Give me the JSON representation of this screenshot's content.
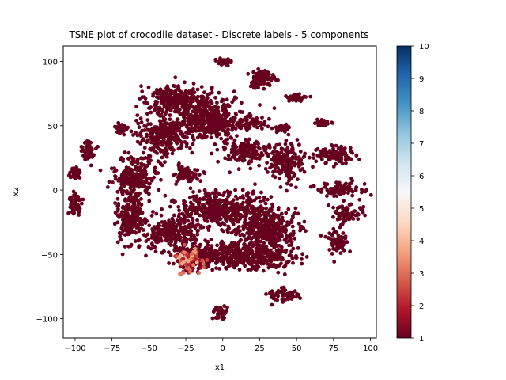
{
  "chart_data": {
    "type": "scatter",
    "title": "TSNE plot of crocodile dataset - Discrete labels - 5 components",
    "xlabel": "x1",
    "ylabel": "x2",
    "xlim": [
      -108,
      104
    ],
    "ylim": [
      -115,
      112
    ],
    "xticks": [
      -100,
      -75,
      -50,
      -25,
      0,
      25,
      50,
      75,
      100
    ],
    "xtick_labels": [
      "−100",
      "−75",
      "−50",
      "−25",
      "0",
      "25",
      "50",
      "75",
      "100"
    ],
    "yticks": [
      -100,
      -50,
      0,
      50,
      100
    ],
    "ytick_labels": [
      "−100",
      "−50",
      "0",
      "50",
      "100"
    ],
    "grid": false,
    "colormap": "RdBu",
    "colorbar": {
      "range": [
        1,
        10
      ],
      "ticks": [
        1,
        2,
        3,
        4,
        5,
        6,
        7,
        8,
        9,
        10
      ],
      "tick_labels": [
        "1",
        "2",
        "3",
        "4",
        "5",
        "6",
        "7",
        "8",
        "9",
        "10"
      ]
    },
    "clusters": [
      {
        "center": [
          0,
          100
        ],
        "spread": [
          5,
          2
        ],
        "label": 1
      },
      {
        "center": [
          27,
          87
        ],
        "spread": [
          7,
          6
        ],
        "label": 1
      },
      {
        "center": [
          22,
          82
        ],
        "spread": [
          2,
          3
        ],
        "label": 1
      },
      {
        "center": [
          50,
          72
        ],
        "spread": [
          6,
          3
        ],
        "label": 1
      },
      {
        "center": [
          -30,
          70
        ],
        "spread": [
          18,
          10
        ],
        "label": 1
      },
      {
        "center": [
          68,
          52
        ],
        "spread": [
          5,
          2
        ],
        "label": 1
      },
      {
        "center": [
          -10,
          55
        ],
        "spread": [
          20,
          12
        ],
        "label": 1
      },
      {
        "center": [
          20,
          52
        ],
        "spread": [
          8,
          4
        ],
        "label": 1
      },
      {
        "center": [
          40,
          48
        ],
        "spread": [
          5,
          2
        ],
        "label": 1
      },
      {
        "center": [
          -69,
          48
        ],
        "spread": [
          3,
          4
        ],
        "label": 1
      },
      {
        "center": [
          -40,
          42
        ],
        "spread": [
          14,
          12
        ],
        "label": 1
      },
      {
        "center": [
          -91,
          30
        ],
        "spread": [
          4,
          8
        ],
        "label": 1
      },
      {
        "center": [
          -100,
          12
        ],
        "spread": [
          3,
          4
        ],
        "label": 1
      },
      {
        "center": [
          15,
          30
        ],
        "spread": [
          12,
          8
        ],
        "label": 1
      },
      {
        "center": [
          42,
          22
        ],
        "spread": [
          10,
          12
        ],
        "label": 1
      },
      {
        "center": [
          75,
          27
        ],
        "spread": [
          12,
          6
        ],
        "label": 1
      },
      {
        "center": [
          -60,
          10
        ],
        "spread": [
          12,
          12
        ],
        "label": 1
      },
      {
        "center": [
          -25,
          12
        ],
        "spread": [
          8,
          6
        ],
        "label": 1
      },
      {
        "center": [
          80,
          0
        ],
        "spread": [
          12,
          5
        ],
        "label": 1
      },
      {
        "center": [
          -62,
          -20
        ],
        "spread": [
          8,
          16
        ],
        "label": 1
      },
      {
        "center": [
          -100,
          -12
        ],
        "spread": [
          4,
          8
        ],
        "label": 1
      },
      {
        "center": [
          0,
          -15
        ],
        "spread": [
          25,
          12
        ],
        "label": 1
      },
      {
        "center": [
          85,
          -18
        ],
        "spread": [
          8,
          6
        ],
        "label": 1
      },
      {
        "center": [
          -35,
          -35
        ],
        "spread": [
          15,
          10
        ],
        "label": 1
      },
      {
        "center": [
          30,
          -30
        ],
        "spread": [
          18,
          12
        ],
        "label": 1
      },
      {
        "center": [
          78,
          -40
        ],
        "spread": [
          6,
          8
        ],
        "label": 1
      },
      {
        "center": [
          -5,
          -50
        ],
        "spread": [
          22,
          8
        ],
        "label": 1
      },
      {
        "center": [
          25,
          -52
        ],
        "spread": [
          20,
          8
        ],
        "label": 1
      },
      {
        "center": [
          -22,
          -58
        ],
        "spread": [
          8,
          6
        ],
        "label": 2
      },
      {
        "center": [
          -24,
          -52
        ],
        "spread": [
          6,
          5
        ],
        "label": 3
      },
      {
        "center": [
          40,
          -82
        ],
        "spread": [
          10,
          4
        ],
        "label": 1
      },
      {
        "center": [
          -2,
          -95
        ],
        "spread": [
          4,
          6
        ],
        "label": 1
      }
    ]
  }
}
